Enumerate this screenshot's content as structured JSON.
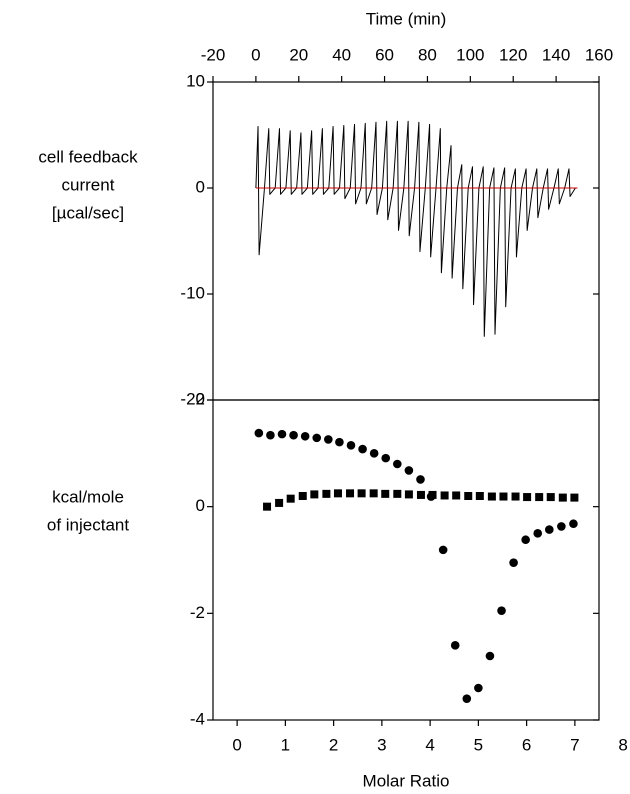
{
  "chart_data": [
    {
      "type": "line",
      "x_label": "Time (min)",
      "y_label": [
        "cell feedback",
        "current",
        "[µcal/sec]"
      ],
      "xlim": [
        -20,
        160
      ],
      "xticks": [
        -20,
        0,
        20,
        40,
        60,
        80,
        100,
        120,
        140,
        160
      ],
      "ylim": [
        -20,
        10
      ],
      "yticks": [
        -20,
        -10,
        0,
        10
      ],
      "series": [
        {
          "color": "#000000",
          "x": [
            0,
            1,
            1.5,
            4,
            6,
            6.5,
            9,
            11,
            11.5,
            14,
            16,
            16.5,
            19,
            21,
            21.5,
            24,
            26,
            26.5,
            29,
            31,
            31.5,
            34,
            36,
            36.5,
            39,
            41,
            41.5,
            44,
            46,
            46.5,
            49,
            51,
            51.5,
            54,
            56,
            56.5,
            59,
            61,
            61.5,
            64,
            66,
            66.5,
            69,
            71,
            71.5,
            74,
            76,
            76.5,
            79,
            81,
            81.5,
            84,
            86,
            86.5,
            89,
            91,
            91.5,
            94,
            96,
            96.5,
            99,
            101,
            101.5,
            104,
            106,
            106.5,
            109,
            111,
            111.5,
            114,
            116,
            116.5,
            119,
            121,
            121.5,
            124,
            126,
            126.5,
            129,
            131,
            131.5,
            134,
            136,
            136.5,
            139,
            141,
            141.5,
            144,
            146,
            146.5,
            149
          ],
          "values": [
            0,
            5.8,
            -6.3,
            0,
            5.6,
            -0.6,
            0,
            5.6,
            -0.6,
            0,
            5.4,
            -0.6,
            0,
            5.2,
            -0.6,
            0,
            5.4,
            -0.6,
            0,
            5.6,
            -0.6,
            0,
            5.8,
            -0.6,
            0,
            5.9,
            -1.0,
            0,
            6.0,
            -1.5,
            0,
            6.1,
            -1.5,
            0,
            6.2,
            -2.5,
            0,
            6.3,
            -3.0,
            0,
            6.3,
            -4.0,
            0,
            6.3,
            -4.5,
            0,
            6.2,
            -6.0,
            0,
            6.0,
            -6.5,
            0,
            5.6,
            -8.0,
            0,
            4.0,
            -8.5,
            0,
            2.2,
            -9.5,
            0,
            2.0,
            -11.0,
            0,
            2.0,
            -14.0,
            0,
            1.9,
            -13.8,
            0,
            1.9,
            -11.2,
            0,
            1.8,
            -6.5,
            0,
            1.8,
            -4.0,
            0,
            1.8,
            -2.8,
            0,
            1.8,
            -2.0,
            0,
            1.8,
            -1.5,
            0,
            1.8,
            -0.8,
            0
          ]
        },
        {
          "color": "#cc0000",
          "x": [
            0,
            150
          ],
          "values": [
            0,
            0
          ]
        }
      ]
    },
    {
      "type": "scatter",
      "x_label": "Molar Ratio",
      "y_label": [
        "kcal/mole",
        "of injectant"
      ],
      "xlim": [
        -0.5,
        7.5
      ],
      "xticks": [
        0,
        1,
        2,
        3,
        4,
        5,
        6,
        7,
        8
      ],
      "ylim": [
        -4,
        2
      ],
      "yticks": [
        -4,
        -2,
        0,
        2
      ],
      "series": [
        {
          "color": "#000000",
          "marker": "circle",
          "x": [
            0.45,
            0.69,
            0.93,
            1.17,
            1.41,
            1.65,
            1.89,
            2.12,
            2.36,
            2.6,
            2.84,
            3.08,
            3.32,
            3.56,
            3.8,
            4.02,
            4.27,
            4.52,
            4.76,
            5.0,
            5.24,
            5.48,
            5.73,
            5.98,
            6.23,
            6.47,
            6.72,
            6.97
          ],
          "values": [
            1.38,
            1.34,
            1.36,
            1.34,
            1.32,
            1.29,
            1.26,
            1.21,
            1.15,
            1.08,
            1.0,
            0.91,
            0.8,
            0.68,
            0.51,
            0.19,
            -0.81,
            -2.6,
            -3.6,
            -3.4,
            -2.8,
            -1.95,
            -1.05,
            -0.62,
            -0.5,
            -0.43,
            -0.37,
            -0.32
          ]
        },
        {
          "color": "#000000",
          "marker": "square",
          "x": [
            0.62,
            0.87,
            1.11,
            1.36,
            1.6,
            1.85,
            2.09,
            2.34,
            2.58,
            2.83,
            3.07,
            3.32,
            3.56,
            3.81,
            4.05,
            4.3,
            4.54,
            4.79,
            5.03,
            5.28,
            5.52,
            5.77,
            6.01,
            6.26,
            6.5,
            6.75,
            6.99
          ],
          "values": [
            0.0,
            0.07,
            0.15,
            0.2,
            0.23,
            0.24,
            0.25,
            0.25,
            0.25,
            0.25,
            0.24,
            0.24,
            0.23,
            0.22,
            0.22,
            0.21,
            0.21,
            0.2,
            0.2,
            0.19,
            0.19,
            0.19,
            0.18,
            0.18,
            0.18,
            0.17,
            0.17
          ]
        }
      ]
    }
  ]
}
